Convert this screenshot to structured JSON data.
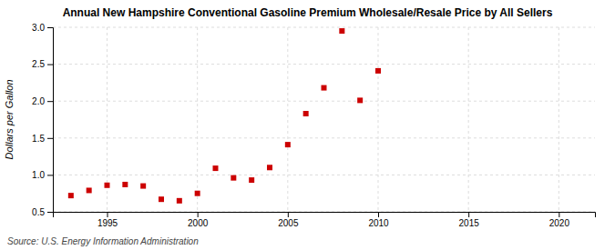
{
  "chart_data": {
    "type": "scatter",
    "title": "Annual New Hampshire Conventional Gasoline Premium Wholesale/Resale Price by All Sellers",
    "ylabel": "Dollars per Gallon",
    "annotations": [
      "Source: U.S. Energy Information Administration"
    ],
    "x": [
      1993,
      1994,
      1995,
      1996,
      1997,
      1998,
      1999,
      2000,
      2001,
      2002,
      2003,
      2004,
      2005,
      2006,
      2007,
      2008,
      2009,
      2010
    ],
    "values": [
      0.72,
      0.79,
      0.86,
      0.87,
      0.85,
      0.67,
      0.65,
      0.75,
      1.09,
      0.96,
      0.93,
      1.1,
      1.41,
      1.83,
      2.18,
      2.95,
      2.01,
      2.41
    ],
    "color": "#cc0000",
    "marker": "square",
    "xlim": [
      1992,
      2022
    ],
    "ylim": [
      0.5,
      3.0
    ],
    "xticks": [
      1995,
      2000,
      2005,
      2010,
      2015,
      2020
    ],
    "yticks": [
      0.5,
      {
        "value": 1.0,
        "label": "1.0"
      },
      1.5,
      {
        "value": 2.0,
        "label": "2.0"
      },
      2.5,
      {
        "value": 3.0,
        "label": "3.0"
      }
    ],
    "grid": true
  }
}
